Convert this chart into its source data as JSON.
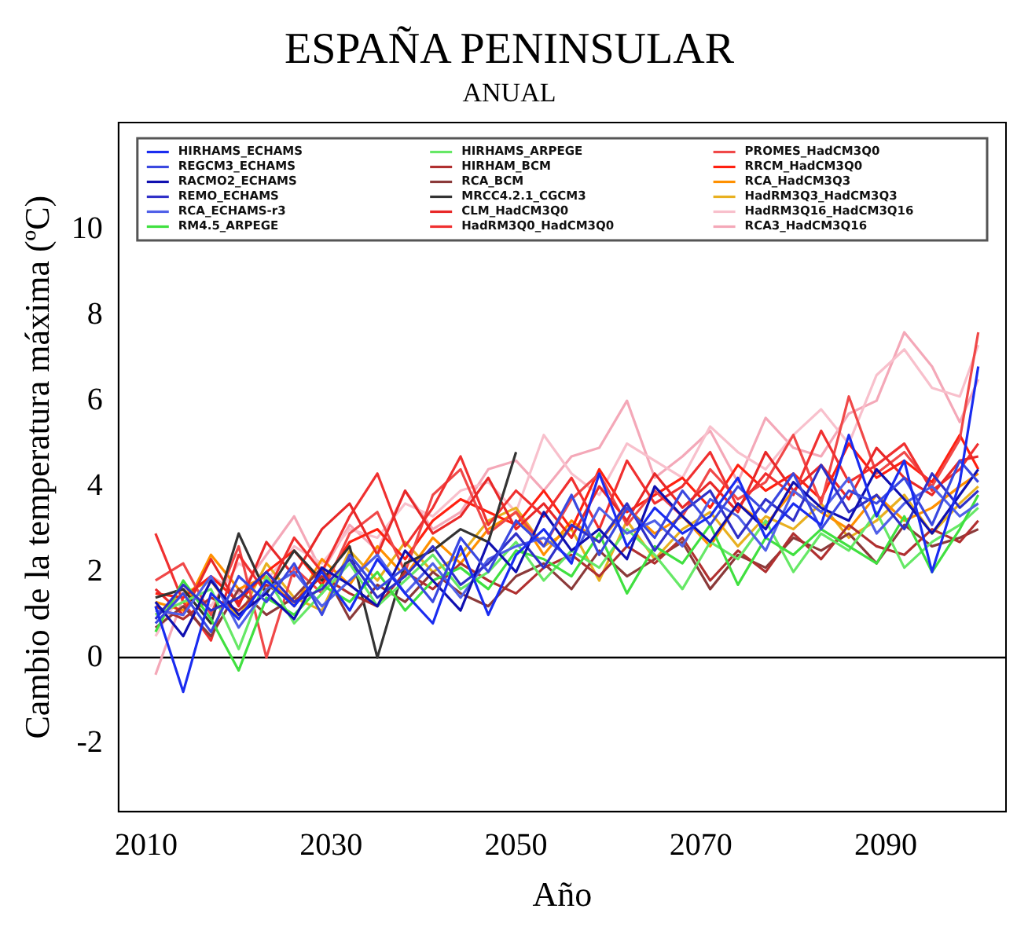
{
  "chart_data": {
    "type": "line",
    "title": "ESPAÑA PENINSULAR",
    "subtitle": "ANUAL",
    "xlabel": "Año",
    "ylabel": "Cambio de la temperatura máxima (ºC)",
    "x": [
      2011,
      2014,
      2017,
      2020,
      2023,
      2026,
      2029,
      2032,
      2035,
      2038,
      2041,
      2044,
      2047,
      2050,
      2053,
      2056,
      2059,
      2062,
      2065,
      2068,
      2071,
      2074,
      2077,
      2080,
      2083,
      2086,
      2089,
      2092,
      2095,
      2098,
      2100
    ],
    "xlim": [
      2007,
      2103
    ],
    "xticks": [
      2010,
      2030,
      2050,
      2070,
      2090
    ],
    "ylim": [
      -3.6,
      12.5
    ],
    "yticks": [
      -2,
      0,
      2,
      4,
      6,
      8,
      10
    ],
    "grid": false,
    "legend": "top",
    "marker": "none",
    "line_style": "solid",
    "ref_lines": [
      {
        "axis": "y",
        "value": 0,
        "color": "#000000"
      }
    ],
    "series": [
      {
        "name": "HIRHAMS_ECHAMS",
        "color": "#1a2cf0",
        "values": [
          1.2,
          -0.8,
          1.5,
          0.9,
          1.8,
          1.2,
          2.0,
          1.1,
          2.3,
          1.5,
          0.8,
          2.6,
          1.0,
          2.4,
          3.0,
          2.2,
          4.3,
          2.6,
          3.5,
          2.9,
          3.3,
          4.2,
          2.8,
          3.6,
          3.1,
          5.2,
          3.3,
          4.6,
          2.0,
          4.1,
          6.8
        ]
      },
      {
        "name": "REGCM3_ECHAMS",
        "color": "#3a48e0",
        "values": [
          0.8,
          1.5,
          0.6,
          1.9,
          1.3,
          2.2,
          1.0,
          2.4,
          1.6,
          2.1,
          1.3,
          2.8,
          2.0,
          3.2,
          2.6,
          3.8,
          2.4,
          3.5,
          2.8,
          3.9,
          3.1,
          4.0,
          3.4,
          4.3,
          3.0,
          3.9,
          3.6,
          4.2,
          3.1,
          4.6,
          4.1
        ]
      },
      {
        "name": "RACMO2_ECHAMS",
        "color": "#1010b0",
        "values": [
          1.3,
          0.5,
          1.8,
          1.0,
          1.5,
          0.9,
          2.1,
          1.7,
          1.2,
          2.5,
          1.8,
          1.1,
          2.7,
          2.0,
          3.4,
          2.5,
          3.0,
          2.3,
          4.0,
          3.3,
          2.7,
          3.6,
          3.0,
          4.1,
          3.5,
          3.2,
          4.4,
          3.7,
          2.9,
          3.8,
          4.4
        ]
      },
      {
        "name": "REMO_ECHAMS",
        "color": "#3030c8",
        "values": [
          0.9,
          1.7,
          1.1,
          1.4,
          2.0,
          1.3,
          1.6,
          2.3,
          1.4,
          1.9,
          2.6,
          1.7,
          2.2,
          2.9,
          2.1,
          3.1,
          2.7,
          3.6,
          2.5,
          3.4,
          3.9,
          2.8,
          3.7,
          3.2,
          4.5,
          3.4,
          3.8,
          3.0,
          4.3,
          3.5,
          3.9
        ]
      },
      {
        "name": "RCA_ECHAMS-r3",
        "color": "#5060e8",
        "values": [
          1.1,
          1.0,
          1.9,
          0.7,
          1.6,
          2.0,
          1.2,
          1.8,
          2.4,
          1.5,
          2.2,
          1.4,
          2.3,
          2.6,
          2.8,
          2.3,
          3.5,
          2.9,
          3.2,
          2.6,
          3.7,
          3.3,
          2.5,
          3.9,
          3.4,
          4.2,
          2.9,
          3.6,
          4.0,
          3.3,
          3.6
        ]
      },
      {
        "name": "RM4.5_ARPEGE",
        "color": "#40e040",
        "values": [
          0.6,
          1.8,
          0.9,
          -0.3,
          1.4,
          1.0,
          1.7,
          1.3,
          2.0,
          1.1,
          1.8,
          2.1,
          1.6,
          2.5,
          2.3,
          1.9,
          2.9,
          1.5,
          2.6,
          2.2,
          3.1,
          1.7,
          2.8,
          2.4,
          3.0,
          2.6,
          2.2,
          3.3,
          2.0,
          3.0,
          3.8
        ]
      },
      {
        "name": "HIRHAMS_ARPEGE",
        "color": "#66e866",
        "values": [
          1.0,
          1.3,
          1.6,
          0.2,
          1.9,
          0.8,
          1.5,
          2.2,
          1.2,
          1.8,
          2.4,
          1.6,
          2.0,
          2.7,
          1.8,
          2.5,
          2.1,
          3.0,
          2.4,
          1.6,
          2.7,
          2.3,
          3.2,
          2.0,
          2.9,
          2.5,
          3.4,
          2.1,
          2.7,
          3.1,
          3.5
        ]
      },
      {
        "name": "HIRHAM_BCM",
        "color": "#b03030",
        "values": [
          1.2,
          0.9,
          1.4,
          1.1,
          1.7,
          1.3,
          1.9,
          1.5,
          1.2,
          2.0,
          1.6,
          2.2,
          1.8,
          1.5,
          2.1,
          2.4,
          1.9,
          2.6,
          2.2,
          2.8,
          1.8,
          2.5,
          2.0,
          2.9,
          2.3,
          3.1,
          2.6,
          2.4,
          3.0,
          2.7,
          3.2
        ]
      },
      {
        "name": "RCA_BCM",
        "color": "#8b3a3a",
        "values": [
          0.7,
          1.2,
          0.5,
          1.6,
          1.0,
          1.4,
          2.1,
          0.9,
          1.7,
          1.3,
          2.0,
          1.5,
          1.2,
          1.9,
          2.2,
          1.6,
          2.5,
          1.9,
          2.3,
          2.7,
          1.6,
          2.4,
          2.1,
          2.8,
          2.5,
          2.9,
          2.2,
          3.1,
          2.6,
          2.8,
          3.0
        ]
      },
      {
        "name": "MRCC4.2.1_CGCM3",
        "color": "#333333",
        "x": [
          2011,
          2014,
          2017,
          2020,
          2023,
          2026,
          2029,
          2032,
          2035,
          2038,
          2041,
          2044,
          2047,
          2050
        ],
        "values": [
          1.4,
          1.6,
          0.8,
          2.9,
          1.5,
          2.5,
          1.8,
          2.6,
          0.0,
          2.2,
          2.5,
          3.0,
          2.7,
          4.8
        ]
      },
      {
        "name": "CLM_HadCM3Q0",
        "color": "#e82828",
        "values": [
          1.6,
          1.0,
          2.3,
          1.2,
          2.7,
          1.9,
          3.0,
          3.6,
          2.4,
          3.9,
          2.9,
          3.3,
          4.2,
          3.0,
          3.6,
          2.8,
          4.0,
          3.2,
          4.3,
          3.5,
          4.1,
          3.4,
          4.8,
          3.9,
          4.5,
          3.7,
          4.9,
          4.2,
          3.8,
          4.6,
          4.7
        ]
      },
      {
        "name": "HadRM3Q0_HadCM3Q0",
        "color": "#f03030",
        "values": [
          2.9,
          1.3,
          0.4,
          2.4,
          1.5,
          2.8,
          2.0,
          3.3,
          4.3,
          2.6,
          3.5,
          4.7,
          3.1,
          3.9,
          3.3,
          4.2,
          3.0,
          4.6,
          3.6,
          4.0,
          4.8,
          3.5,
          4.3,
          3.8,
          5.3,
          4.1,
          4.5,
          5.0,
          3.9,
          4.4,
          5.0
        ]
      },
      {
        "name": "PROMES_HadCM3Q0",
        "color": "#f04848",
        "values": [
          1.8,
          2.2,
          1.0,
          2.6,
          0.0,
          2.1,
          1.5,
          2.9,
          3.4,
          2.0,
          3.8,
          4.4,
          2.9,
          3.4,
          2.6,
          3.7,
          4.3,
          3.1,
          3.9,
          3.3,
          4.4,
          3.7,
          4.1,
          5.2,
          3.6,
          6.1,
          4.3,
          4.8,
          4.0,
          5.1,
          7.6
        ]
      },
      {
        "name": "RRCM_HadCM3Q0",
        "color": "#ff2010",
        "values": [
          1.5,
          1.4,
          1.9,
          1.3,
          2.0,
          2.5,
          1.7,
          2.7,
          3.0,
          2.3,
          3.2,
          3.7,
          3.4,
          3.1,
          3.9,
          3.0,
          4.4,
          3.4,
          3.8,
          4.2,
          3.5,
          4.5,
          3.9,
          4.3,
          3.7,
          5.0,
          4.2,
          4.6,
          4.1,
          5.2,
          4.4
        ]
      },
      {
        "name": "RCA_HadCM3Q3",
        "color": "#ff9000",
        "values": [
          1.3,
          1.1,
          2.4,
          1.6,
          1.9,
          1.2,
          2.3,
          1.7,
          2.6,
          1.9,
          2.8,
          2.2,
          3.0,
          3.4,
          2.4,
          3.2,
          2.7,
          3.5,
          2.9,
          3.3,
          2.6,
          3.6,
          3.1,
          3.9,
          3.4,
          3.0,
          3.8,
          3.2,
          3.5,
          4.0,
          4.3
        ]
      },
      {
        "name": "HadRM3Q3_HadCM3Q3",
        "color": "#e8b020",
        "values": [
          1.0,
          1.5,
          1.8,
          0.9,
          2.2,
          1.4,
          1.1,
          2.5,
          1.8,
          2.7,
          2.0,
          2.4,
          3.2,
          3.5,
          2.6,
          3.0,
          1.8,
          3.2,
          2.3,
          3.0,
          3.4,
          2.6,
          3.3,
          3.0,
          3.6,
          2.8,
          3.2,
          3.8,
          2.9,
          3.6,
          4.0
        ]
      },
      {
        "name": "HadRM3Q16_HadCM3Q16",
        "color": "#f8c0cc",
        "values": [
          0.5,
          1.6,
          1.2,
          2.2,
          1.8,
          2.6,
          2.2,
          3.0,
          2.8,
          3.6,
          3.3,
          3.9,
          4.1,
          3.4,
          5.2,
          4.3,
          3.8,
          5.0,
          4.6,
          4.2,
          5.4,
          4.8,
          4.4,
          5.2,
          5.8,
          5.0,
          6.6,
          7.2,
          6.3,
          6.1,
          7.3
        ]
      },
      {
        "name": "RCA3_HadCM3Q16",
        "color": "#f4a8b8",
        "values": [
          -0.4,
          1.4,
          1.9,
          1.5,
          2.4,
          3.3,
          2.0,
          3.1,
          2.5,
          3.9,
          3.0,
          3.4,
          4.4,
          4.6,
          3.9,
          4.7,
          4.9,
          6.0,
          4.2,
          4.7,
          5.3,
          4.1,
          5.6,
          4.9,
          4.7,
          5.7,
          6.0,
          7.6,
          6.8,
          5.5,
          6.5
        ]
      }
    ]
  }
}
